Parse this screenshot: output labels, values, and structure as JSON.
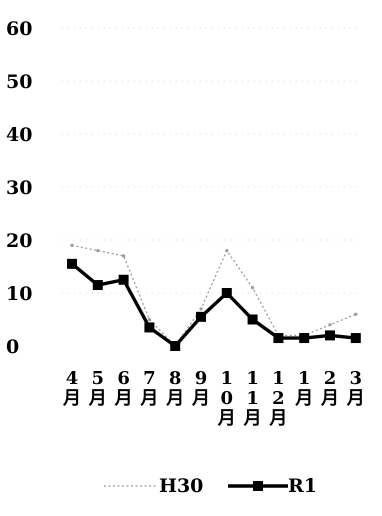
{
  "chart_data": {
    "type": "line",
    "categories": [
      "4月",
      "5月",
      "6月",
      "7月",
      "8月",
      "9月",
      "10月",
      "11月",
      "12月",
      "1月",
      "2月",
      "3月"
    ],
    "category_lines": [
      [
        "4",
        "月"
      ],
      [
        "5",
        "月"
      ],
      [
        "6",
        "月"
      ],
      [
        "7",
        "月"
      ],
      [
        "8",
        "月"
      ],
      [
        "9",
        "月"
      ],
      [
        "1",
        "0",
        "月"
      ],
      [
        "1",
        "1",
        "月"
      ],
      [
        "1",
        "2",
        "月"
      ],
      [
        "1",
        "月"
      ],
      [
        "2",
        "月"
      ],
      [
        "3",
        "月"
      ]
    ],
    "series": [
      {
        "name": "H30",
        "values": [
          19,
          18,
          17,
          5,
          0,
          7,
          18,
          11,
          2,
          2,
          4,
          6
        ],
        "color": "#9a9a9a",
        "style": "dotted"
      },
      {
        "name": "R1",
        "values": [
          15.5,
          11.5,
          12.5,
          3.5,
          0,
          5.5,
          10,
          5,
          1.5,
          1.5,
          2,
          1.5
        ],
        "color": "#000000",
        "style": "solid-square-markers"
      }
    ],
    "yticks": [
      0,
      10,
      20,
      30,
      40,
      50,
      60
    ],
    "ylim": [
      0,
      60
    ],
    "grid": true,
    "legend": "bottom",
    "title": "",
    "xlabel": "",
    "ylabel": ""
  }
}
